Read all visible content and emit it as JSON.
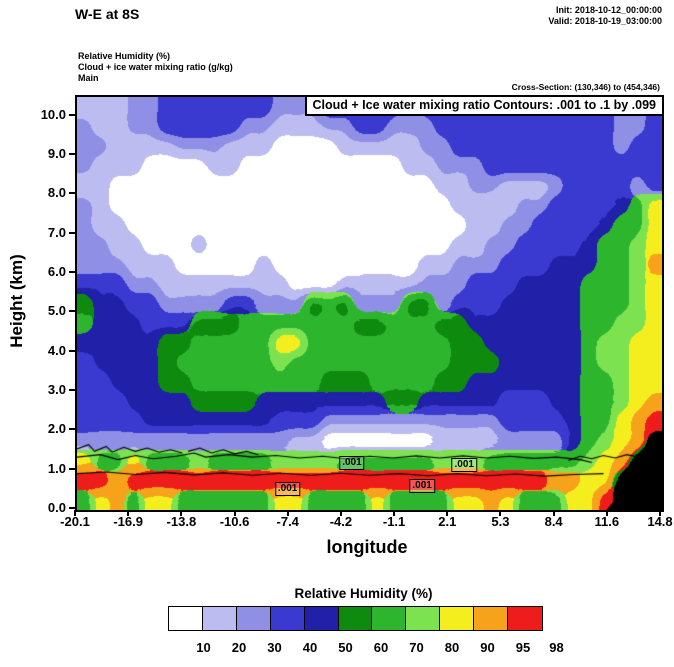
{
  "header": {
    "title": "W-E at 8S",
    "init": "Init: 2018-10-12_00:00:00",
    "valid": "Valid: 2018-10-19_03:00:00"
  },
  "info": {
    "field1": "Relative Humidity  (%)",
    "field2": "Cloud + ice water mixing ratio  (g/kg)",
    "field3": "Main",
    "cross_section": "Cross-Section: (130,346) to (454,346)"
  },
  "plot": {
    "contour_note": "Cloud + Ice water mixing ratio Contours: .001 to .1 by .099",
    "ylabel": "Height (km)",
    "xlabel": "longitude",
    "yticks": [
      "0.0",
      "1.0",
      "2.0",
      "3.0",
      "4.0",
      "5.0",
      "6.0",
      "7.0",
      "8.0",
      "9.0",
      "10.0"
    ],
    "xticks": [
      "-20.1",
      "-16.9",
      "-13.8",
      "-10.6",
      "-7.4",
      "-4.2",
      "-1.1",
      "2.1",
      "5.3",
      "8.4",
      "11.6",
      "14.8"
    ]
  },
  "colorbar": {
    "title": "Relative Humidity  (%)",
    "labels": [
      "10",
      "20",
      "30",
      "40",
      "50",
      "60",
      "70",
      "80",
      "90",
      "95",
      "98"
    ]
  },
  "chart_data": {
    "type": "heatmap",
    "title": "W-E vertical cross-section at 8S",
    "fill_field": "Relative Humidity (%)",
    "overlay_field": "Cloud + Ice water mixing ratio (g/kg)",
    "overlay_levels": [
      0.001,
      0.1
    ],
    "x_axis": {
      "label": "longitude",
      "range": [
        -20.1,
        14.8
      ]
    },
    "y_axis": {
      "label": "Height (km)",
      "range": [
        0,
        10.5
      ]
    },
    "levels": [
      10,
      20,
      30,
      40,
      50,
      60,
      70,
      80,
      90,
      95,
      98
    ],
    "palette": [
      "#ffffff",
      "#bcbcf0",
      "#8f8fe6",
      "#3a3ad0",
      "#2020a8",
      "#0e8b0e",
      "#2eb52e",
      "#7de24f",
      "#f5ee1f",
      "#f7a21b",
      "#ef1c1c",
      "#000000"
    ],
    "palette_meaning": [
      "<10",
      "10-20",
      "20-30",
      "30-40",
      "40-50",
      "50-60",
      "60-70",
      "70-80",
      "80-90",
      "90-95",
      "95-98+",
      "terrain"
    ],
    "grid_cols": 36,
    "grid_rows": 21,
    "rh_grid": [
      [
        1,
        1,
        1,
        2,
        2,
        3,
        3,
        3,
        3,
        3,
        3,
        3,
        2,
        2,
        2,
        3,
        3,
        3,
        3,
        3,
        2,
        3,
        3,
        3,
        3,
        3,
        3,
        3,
        3,
        3,
        3,
        3,
        3,
        2,
        2,
        3
      ],
      [
        2,
        1,
        1,
        2,
        2,
        3,
        3,
        3,
        3,
        3,
        2,
        2,
        1,
        1,
        1,
        2,
        2,
        3,
        3,
        2,
        2,
        2,
        3,
        3,
        3,
        3,
        3,
        3,
        3,
        3,
        3,
        3,
        3,
        2,
        2,
        3
      ],
      [
        2,
        2,
        1,
        1,
        1,
        1,
        2,
        2,
        2,
        1,
        1,
        1,
        0,
        0,
        0,
        0,
        1,
        1,
        1,
        1,
        1,
        2,
        2,
        3,
        3,
        3,
        3,
        3,
        3,
        3,
        3,
        3,
        3,
        2,
        3,
        3
      ],
      [
        2,
        1,
        1,
        1,
        0,
        0,
        0,
        0,
        1,
        1,
        0,
        0,
        0,
        0,
        0,
        0,
        0,
        0,
        0,
        0,
        1,
        1,
        2,
        2,
        2,
        3,
        3,
        3,
        3,
        3,
        3,
        3,
        3,
        3,
        3,
        3
      ],
      [
        1,
        1,
        0,
        0,
        0,
        0,
        0,
        0,
        0,
        0,
        0,
        0,
        0,
        0,
        0,
        0,
        0,
        0,
        0,
        0,
        0,
        0,
        1,
        1,
        2,
        2,
        1,
        1,
        1,
        2,
        3,
        3,
        3,
        3,
        2,
        3
      ],
      [
        2,
        1,
        0,
        0,
        0,
        0,
        0,
        0,
        0,
        0,
        0,
        0,
        0,
        0,
        0,
        0,
        0,
        0,
        0,
        0,
        0,
        0,
        0,
        1,
        1,
        1,
        1,
        2,
        2,
        3,
        3,
        3,
        3,
        4,
        6,
        8
      ],
      [
        2,
        1,
        1,
        0,
        0,
        0,
        0,
        0,
        0,
        0,
        0,
        0,
        0,
        0,
        0,
        0,
        0,
        0,
        0,
        0,
        0,
        0,
        0,
        0,
        1,
        1,
        2,
        2,
        3,
        3,
        3,
        3,
        4,
        6,
        6,
        8
      ],
      [
        2,
        2,
        1,
        1,
        0,
        0,
        0,
        1,
        0,
        0,
        0,
        0,
        0,
        0,
        0,
        0,
        0,
        0,
        0,
        0,
        0,
        0,
        0,
        1,
        1,
        2,
        2,
        3,
        3,
        3,
        3,
        4,
        6,
        6,
        7,
        8
      ],
      [
        2,
        2,
        2,
        1,
        1,
        1,
        0,
        0,
        0,
        0,
        0,
        1,
        0,
        0,
        0,
        0,
        0,
        0,
        0,
        0,
        0,
        1,
        1,
        2,
        2,
        2,
        3,
        3,
        3,
        4,
        4,
        4,
        6,
        6,
        7,
        9
      ],
      [
        3,
        3,
        3,
        2,
        2,
        1,
        1,
        1,
        1,
        1,
        1,
        1,
        1,
        0,
        0,
        0,
        1,
        1,
        1,
        1,
        1,
        2,
        2,
        2,
        3,
        3,
        3,
        4,
        4,
        4,
        4,
        6,
        6,
        6,
        7,
        8
      ],
      [
        5,
        4,
        4,
        3,
        3,
        2,
        2,
        2,
        2,
        3,
        3,
        2,
        2,
        2,
        5,
        6,
        5,
        2,
        2,
        2,
        5,
        5,
        2,
        3,
        3,
        3,
        4,
        4,
        4,
        4,
        4,
        6,
        6,
        6,
        7,
        8
      ],
      [
        6,
        4,
        4,
        4,
        3,
        3,
        3,
        5,
        5,
        5,
        6,
        6,
        6,
        6,
        6,
        6,
        6,
        5,
        5,
        6,
        6,
        6,
        5,
        5,
        4,
        4,
        4,
        4,
        4,
        4,
        4,
        6,
        6,
        7,
        7,
        8
      ],
      [
        4,
        4,
        4,
        4,
        4,
        5,
        5,
        6,
        6,
        6,
        6,
        6,
        8,
        8,
        6,
        6,
        6,
        6,
        6,
        6,
        6,
        6,
        6,
        5,
        5,
        4,
        4,
        4,
        4,
        4,
        4,
        6,
        7,
        7,
        8,
        8
      ],
      [
        3,
        4,
        4,
        4,
        4,
        5,
        6,
        6,
        6,
        6,
        6,
        6,
        7,
        6,
        6,
        6,
        6,
        6,
        6,
        6,
        6,
        6,
        6,
        5,
        5,
        5,
        4,
        4,
        4,
        4,
        4,
        6,
        7,
        7,
        8,
        8
      ],
      [
        3,
        3,
        4,
        4,
        4,
        5,
        5,
        6,
        6,
        6,
        6,
        6,
        6,
        6,
        6,
        5,
        5,
        5,
        6,
        6,
        6,
        6,
        5,
        5,
        4,
        4,
        4,
        4,
        4,
        4,
        4,
        6,
        6,
        7,
        8,
        8
      ],
      [
        3,
        3,
        3,
        4,
        4,
        4,
        4,
        5,
        5,
        5,
        5,
        4,
        4,
        4,
        4,
        4,
        4,
        4,
        4,
        5,
        5,
        4,
        4,
        4,
        4,
        4,
        3,
        3,
        3,
        4,
        4,
        6,
        6,
        7,
        8,
        9
      ],
      [
        3,
        3,
        3,
        3,
        4,
        4,
        4,
        4,
        4,
        4,
        4,
        4,
        3,
        3,
        3,
        2,
        2,
        2,
        2,
        2,
        2,
        2,
        2,
        2,
        2,
        2,
        3,
        3,
        3,
        3,
        4,
        6,
        6,
        8,
        9,
        10
      ],
      [
        2,
        2,
        2,
        2,
        2,
        2,
        2,
        2,
        2,
        2,
        2,
        2,
        2,
        1,
        1,
        0,
        0,
        0,
        0,
        0,
        0,
        0,
        1,
        1,
        1,
        1,
        2,
        2,
        2,
        2,
        4,
        6,
        7,
        8,
        9,
        11
      ],
      [
        8,
        6,
        6,
        8,
        6,
        6,
        6,
        7,
        6,
        6,
        6,
        6,
        7,
        7,
        7,
        7,
        6,
        6,
        6,
        6,
        6,
        6,
        7,
        7,
        7,
        6,
        6,
        6,
        6,
        6,
        6,
        7,
        8,
        9,
        11,
        11
      ],
      [
        10,
        10,
        9,
        10,
        10,
        10,
        10,
        10,
        10,
        10,
        10,
        10,
        10,
        10,
        10,
        10,
        10,
        10,
        10,
        10,
        10,
        10,
        10,
        10,
        10,
        10,
        10,
        10,
        10,
        9,
        9,
        8,
        8,
        11,
        11,
        11
      ],
      [
        6,
        8,
        9,
        6,
        8,
        8,
        6,
        6,
        6,
        6,
        6,
        6,
        8,
        8,
        6,
        6,
        6,
        6,
        8,
        6,
        6,
        6,
        6,
        8,
        8,
        9,
        8,
        6,
        6,
        6,
        8,
        8,
        10,
        11,
        11,
        11
      ]
    ],
    "cloud_contours": [
      [
        [
          0.0,
          0.872
        ],
        [
          0.04,
          0.866
        ],
        [
          0.07,
          0.878
        ],
        [
          0.1,
          0.868
        ],
        [
          0.13,
          0.876
        ],
        [
          0.17,
          0.87
        ],
        [
          0.2,
          0.862
        ],
        [
          0.22,
          0.872
        ],
        [
          0.26,
          0.866
        ],
        [
          0.3,
          0.872
        ],
        [
          0.34,
          0.868
        ],
        [
          0.38,
          0.874
        ],
        [
          0.42,
          0.87
        ],
        [
          0.46,
          0.876
        ],
        [
          0.5,
          0.87
        ],
        [
          0.54,
          0.874
        ],
        [
          0.58,
          0.869
        ],
        [
          0.62,
          0.874
        ],
        [
          0.66,
          0.869
        ],
        [
          0.7,
          0.874
        ],
        [
          0.74,
          0.87
        ],
        [
          0.78,
          0.875
        ],
        [
          0.82,
          0.872
        ],
        [
          0.86,
          0.878
        ],
        [
          0.88,
          0.885
        ]
      ],
      [
        [
          0.0,
          0.912
        ],
        [
          0.05,
          0.908
        ],
        [
          0.1,
          0.914
        ],
        [
          0.15,
          0.909
        ],
        [
          0.2,
          0.915
        ],
        [
          0.25,
          0.91
        ],
        [
          0.3,
          0.916
        ],
        [
          0.35,
          0.911
        ],
        [
          0.4,
          0.916
        ],
        [
          0.45,
          0.911
        ],
        [
          0.5,
          0.916
        ],
        [
          0.55,
          0.912
        ],
        [
          0.6,
          0.917
        ],
        [
          0.65,
          0.912
        ],
        [
          0.7,
          0.917
        ],
        [
          0.75,
          0.913
        ],
        [
          0.8,
          0.918
        ],
        [
          0.85,
          0.914
        ],
        [
          0.9,
          0.912
        ]
      ],
      [
        [
          0.0,
          0.852
        ],
        [
          0.02,
          0.842
        ],
        [
          0.03,
          0.858
        ],
        [
          0.05,
          0.846
        ],
        [
          0.06,
          0.86
        ],
        [
          0.08,
          0.848
        ],
        [
          0.1,
          0.858
        ],
        [
          0.12,
          0.85
        ],
        [
          0.14,
          0.86
        ],
        [
          0.16,
          0.854
        ],
        [
          0.18,
          0.862
        ]
      ],
      [
        [
          0.19,
          0.858
        ],
        [
          0.21,
          0.85
        ],
        [
          0.23,
          0.862
        ],
        [
          0.25,
          0.854
        ],
        [
          0.27,
          0.864
        ],
        [
          0.29,
          0.858
        ],
        [
          0.31,
          0.866
        ]
      ],
      [
        [
          0.84,
          0.88
        ],
        [
          0.86,
          0.87
        ],
        [
          0.88,
          0.876
        ],
        [
          0.9,
          0.868
        ],
        [
          0.92,
          0.874
        ],
        [
          0.94,
          0.866
        ],
        [
          0.96,
          0.872
        ]
      ]
    ],
    "contour_labels": [
      {
        "text": ".001",
        "fx": 0.47,
        "fy": 0.886
      },
      {
        "text": ".001",
        "fx": 0.36,
        "fy": 0.948
      },
      {
        "text": ".001",
        "fx": 0.59,
        "fy": 0.943
      },
      {
        "text": ".001",
        "fx": 0.662,
        "fy": 0.89
      }
    ],
    "terrain_polygon_fx": [
      [
        0.905,
        1.0
      ],
      [
        1.0,
        0.838
      ],
      [
        1.0,
        1.0
      ]
    ]
  }
}
